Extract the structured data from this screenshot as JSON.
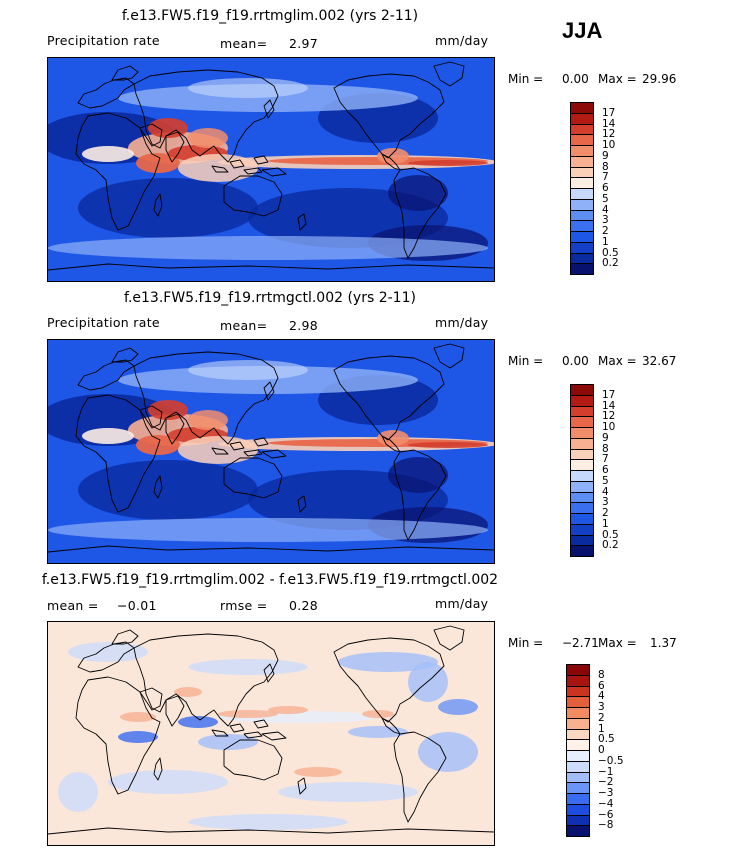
{
  "season": "JJA",
  "palettes": {
    "precip": [
      "#08126e",
      "#0a2aa0",
      "#1440c8",
      "#1e56e6",
      "#3a70f0",
      "#5d8ef4",
      "#8fb1f8",
      "#c6d8fb",
      "#fdeee4",
      "#fbd0b8",
      "#f8b092",
      "#f28d6b",
      "#e8674a",
      "#d43e2c",
      "#b41a14",
      "#8c0a08"
    ],
    "diff": [
      "#08126e",
      "#1030b4",
      "#1e4ce0",
      "#3a6cf0",
      "#6a94f5",
      "#a2bef9",
      "#cddcfb",
      "#e7effd",
      "#fdf1e8",
      "#fbd6c0",
      "#f8b090",
      "#f28a62",
      "#e4603c",
      "#cc3422",
      "#a81410",
      "#880606"
    ]
  },
  "panels": [
    {
      "title": "f.e13.FW5.f19_f19.rrtmglim.002 (yrs 2-11)",
      "left_label": "Precipitation rate",
      "stat1_label": "mean=",
      "stat1_value": "2.97",
      "stat2_label": "",
      "stat2_value": "",
      "units": "mm/day",
      "min_label": "Min =",
      "min_value": "0.00",
      "max_label": "Max =",
      "max_value": "29.96",
      "cbar_labels": [
        "17",
        "14",
        "12",
        "10",
        "9",
        "8",
        "7",
        "6",
        "5",
        "4",
        "3",
        "2",
        "1",
        "0.5",
        "0.2"
      ]
    },
    {
      "title": "f.e13.FW5.f19_f19.rrtmgctl.002 (yrs 2-11)",
      "left_label": "Precipitation rate",
      "stat1_label": "mean=",
      "stat1_value": "2.98",
      "stat2_label": "",
      "stat2_value": "",
      "units": "mm/day",
      "min_label": "Min =",
      "min_value": "0.00",
      "max_label": "Max =",
      "max_value": "32.67",
      "cbar_labels": [
        "17",
        "14",
        "12",
        "10",
        "9",
        "8",
        "7",
        "6",
        "5",
        "4",
        "3",
        "2",
        "1",
        "0.5",
        "0.2"
      ]
    },
    {
      "title": "f.e13.FW5.f19_f19.rrtmglim.002 - f.e13.FW5.f19_f19.rrtmgctl.002",
      "left_label": "",
      "stat1_label": "mean =",
      "stat1_value": "−0.01",
      "stat2_label": "rmse =",
      "stat2_value": "0.28",
      "units": "mm/day",
      "min_label": "Min =",
      "min_value": "−2.71",
      "max_label": "Max =",
      "max_value": "1.37",
      "cbar_labels": [
        "8",
        "6",
        "4",
        "3",
        "2",
        "1",
        "0.5",
        "0",
        "−0.5",
        "−1",
        "−2",
        "−3",
        "−4",
        "−6",
        "−8"
      ]
    }
  ]
}
